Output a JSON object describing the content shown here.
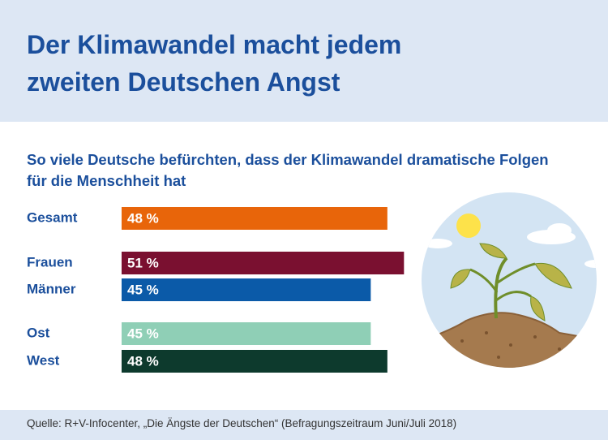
{
  "chart_data": {
    "type": "bar",
    "title": "Der Klimawandel macht jedem zweiten Deutschen Angst",
    "subtitle": "So viele Deutsche befürchten, dass der Klimawandel dramatische Folgen für die Menschheit hat",
    "categories": [
      "Gesamt",
      "Frauen",
      "Männer",
      "Ost",
      "West"
    ],
    "values": [
      48,
      51,
      45,
      45,
      48
    ],
    "value_labels": [
      "48 %",
      "51 %",
      "45 %",
      "45 %",
      "48 %"
    ],
    "colors": [
      "#e8650a",
      "#7a1030",
      "#0b5aa8",
      "#8fcfb6",
      "#0d3a2d"
    ],
    "source": "Quelle: R+V-Infocenter, „Die Ängste der Deutschen“ (Befragungszeitraum Juni/Juli 2018)"
  }
}
